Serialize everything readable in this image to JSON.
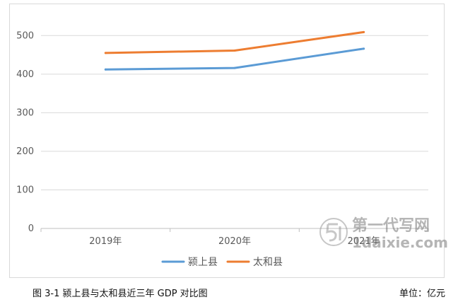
{
  "chart_data": {
    "type": "line",
    "categories": [
      "2019年",
      "2020年",
      "2021年"
    ],
    "series": [
      {
        "name": "颍上县",
        "values": [
          412,
          416,
          466
        ],
        "color": "#5b9bd5"
      },
      {
        "name": "太和县",
        "values": [
          455,
          461,
          509
        ],
        "color": "#ed7d31"
      }
    ],
    "yticks": [
      0,
      100,
      200,
      300,
      400,
      500
    ],
    "ylim": [
      0,
      550
    ],
    "grid": true,
    "legend_position": "bottom"
  },
  "caption": "图 3-1 颍上县与太和县近三年 GDP 对比图",
  "unit": "单位：亿元",
  "watermark": {
    "title": "第一代写网",
    "url": "1daixie.com"
  }
}
